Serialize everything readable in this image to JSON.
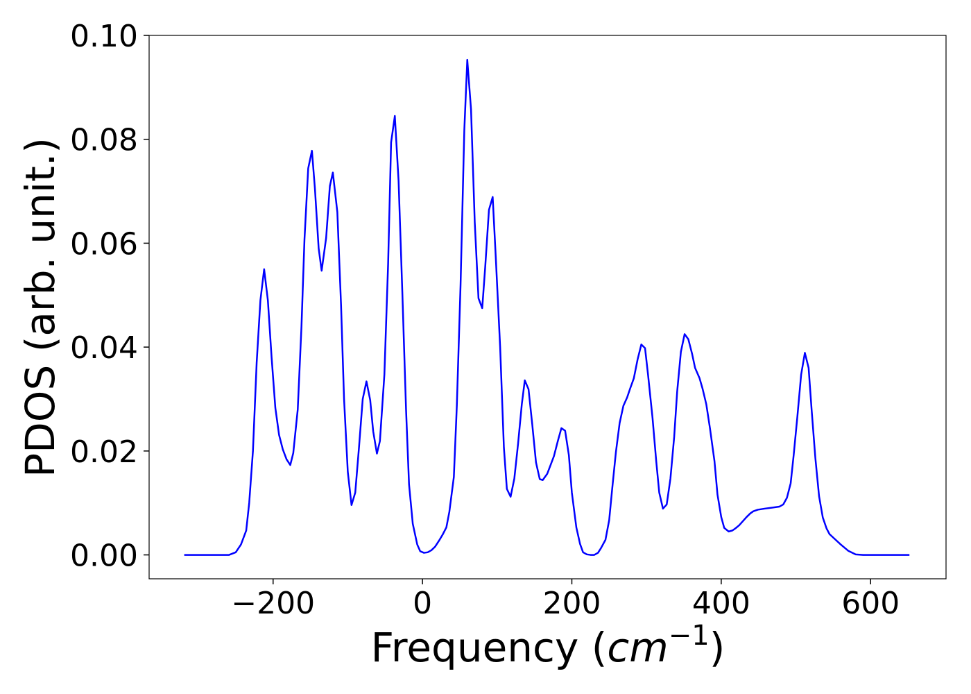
{
  "chart_data": {
    "type": "line",
    "xlabel": [
      "Frequency (",
      "cm",
      "−1",
      ")"
    ],
    "ylabel": "PDOS (arb. unit.)",
    "color": "#0000ff",
    "xlim": [
      -366,
      701
    ],
    "ylim": [
      -0.0046,
      0.1
    ],
    "xticks": [
      {
        "value": -200,
        "label": "−200"
      },
      0,
      200,
      400,
      600
    ],
    "yticks": [
      {
        "value": 0,
        "label": "0.00"
      },
      {
        "value": 0.02,
        "label": "0.02"
      },
      {
        "value": 0.04,
        "label": "0.04"
      },
      {
        "value": 0.06,
        "label": "0.06"
      },
      {
        "value": 0.08,
        "label": "0.08"
      },
      {
        "value": 0.1,
        "label": "0.10"
      }
    ],
    "x": [
      -319,
      -259,
      -250,
      -243,
      -236,
      -232,
      -227,
      -222,
      -217,
      -212,
      -207,
      -202,
      -197,
      -192,
      -187,
      -182,
      -177,
      -173,
      -167,
      -162,
      -158,
      -153,
      -148,
      -144,
      -139,
      -135,
      -129,
      -124,
      -120,
      -114,
      -109,
      -105,
      -100,
      -95,
      -90,
      -85,
      -80,
      -75,
      -70,
      -66,
      -61,
      -57,
      -51,
      -46,
      -42,
      -37,
      -32,
      -27,
      -22,
      -18,
      -13,
      -7,
      -3,
      2,
      7,
      12,
      17,
      22,
      27,
      32,
      36,
      42,
      46,
      51,
      56,
      60,
      65,
      70,
      75,
      80,
      84,
      89,
      94,
      98,
      104,
      109,
      113,
      118,
      123,
      128,
      133,
      137,
      142,
      147,
      152,
      157,
      161,
      167,
      171,
      176,
      181,
      186,
      191,
      196,
      200,
      206,
      211,
      215,
      220,
      225,
      230,
      235,
      239,
      245,
      250,
      254,
      259,
      264,
      269,
      274,
      278,
      283,
      288,
      293,
      298,
      302,
      308,
      313,
      317,
      322,
      327,
      332,
      337,
      341,
      346,
      351,
      356,
      361,
      365,
      371,
      375,
      380,
      385,
      391,
      395,
      400,
      404,
      410,
      415,
      419,
      424,
      429,
      434,
      439,
      443,
      449,
      458,
      468,
      478,
      483,
      488,
      493,
      497,
      502,
      507,
      512,
      517,
      521,
      526,
      531,
      536,
      541,
      545,
      551,
      560,
      570,
      580,
      590,
      652
    ],
    "values": [
      0,
      0,
      0.0005,
      0.002,
      0.0047,
      0.01,
      0.02,
      0.037,
      0.049,
      0.055,
      0.049,
      0.038,
      0.0283,
      0.0231,
      0.0203,
      0.0184,
      0.0173,
      0.0196,
      0.028,
      0.044,
      0.0607,
      0.0744,
      0.0778,
      0.0705,
      0.059,
      0.0547,
      0.061,
      0.071,
      0.0736,
      0.066,
      0.048,
      0.03,
      0.016,
      0.0096,
      0.012,
      0.0207,
      0.03,
      0.0334,
      0.0298,
      0.0238,
      0.0195,
      0.0219,
      0.0347,
      0.056,
      0.0794,
      0.0845,
      0.072,
      0.0507,
      0.028,
      0.0136,
      0.006,
      0.002,
      0.0007,
      0.0004,
      0.0005,
      0.0009,
      0.0016,
      0.0027,
      0.0039,
      0.0053,
      0.0083,
      0.015,
      0.0287,
      0.052,
      0.0817,
      0.0953,
      0.0858,
      0.064,
      0.0494,
      0.0475,
      0.0554,
      0.0664,
      0.0689,
      0.0577,
      0.04,
      0.0207,
      0.0127,
      0.0112,
      0.0147,
      0.0214,
      0.029,
      0.0336,
      0.0319,
      0.0251,
      0.0178,
      0.0146,
      0.0144,
      0.0156,
      0.0171,
      0.019,
      0.0218,
      0.0244,
      0.0239,
      0.0192,
      0.012,
      0.0053,
      0.0021,
      0.0005,
      0.0001,
      0,
      0,
      0.0004,
      0.0013,
      0.0029,
      0.0067,
      0.0127,
      0.0198,
      0.0254,
      0.0287,
      0.0303,
      0.032,
      0.034,
      0.0376,
      0.0405,
      0.0398,
      0.0347,
      0.0264,
      0.018,
      0.012,
      0.0089,
      0.0097,
      0.0147,
      0.0227,
      0.0314,
      0.0391,
      0.0425,
      0.0415,
      0.0387,
      0.036,
      0.034,
      0.032,
      0.029,
      0.0243,
      0.018,
      0.0116,
      0.0073,
      0.0052,
      0.0045,
      0.0047,
      0.0051,
      0.0057,
      0.0065,
      0.0073,
      0.008,
      0.0084,
      0.0087,
      0.0089,
      0.0091,
      0.0093,
      0.0097,
      0.011,
      0.0138,
      0.0192,
      0.0267,
      0.0347,
      0.0389,
      0.036,
      0.028,
      0.0187,
      0.0113,
      0.0072,
      0.0051,
      0.004,
      0.0032,
      0.002,
      0.0008,
      0.0001,
      0,
      0
    ]
  }
}
